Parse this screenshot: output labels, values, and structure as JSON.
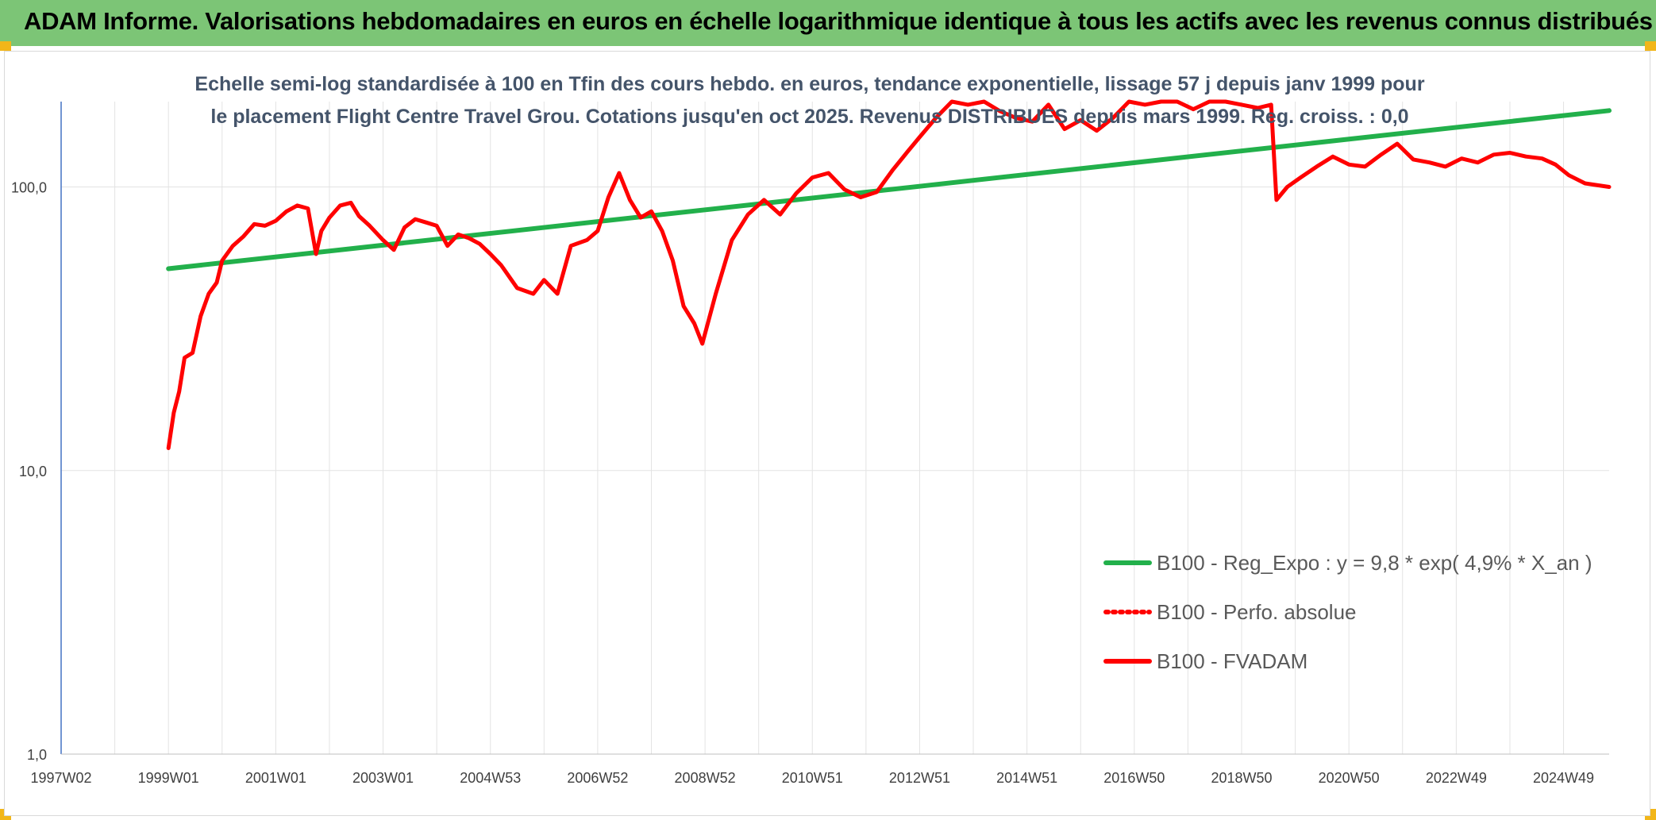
{
  "banner": {
    "title": "ADAM Informe. Valorisations hebdomadaires en euros en échelle logarithmique identique à tous les actifs avec les revenus connus distribués",
    "background": "#7cc576",
    "corner_color": "#f2b619"
  },
  "chart_data": {
    "type": "line",
    "title": "Echelle semi-log standardisée à 100 en Tfin des cours hebdo. en euros, tendance exponentielle, lissage 57 j depuis janv 1999 pour le placement Flight Centre Travel Grou. Cotations jusqu'en oct 2025. Revenus DISTRIBUES depuis mars 1999. Reg. croiss. : 0,0",
    "y_scale": "log",
    "ylim": [
      1,
      200
    ],
    "y_ticks": [
      {
        "value": 1,
        "label": "1,0"
      },
      {
        "value": 10,
        "label": "10,0"
      },
      {
        "value": 100,
        "label": "100,0"
      }
    ],
    "xlim": [
      1997.0,
      2025.85
    ],
    "x_ticks": [
      {
        "value": 1997.0,
        "label": "1997W02"
      },
      {
        "value": 1999.0,
        "label": "1999W01"
      },
      {
        "value": 2001.0,
        "label": "2001W01"
      },
      {
        "value": 2003.0,
        "label": "2003W01"
      },
      {
        "value": 2005.0,
        "label": "2004W53"
      },
      {
        "value": 2007.0,
        "label": "2006W52"
      },
      {
        "value": 2009.0,
        "label": "2008W52"
      },
      {
        "value": 2011.0,
        "label": "2010W51"
      },
      {
        "value": 2013.0,
        "label": "2012W51"
      },
      {
        "value": 2015.0,
        "label": "2014W51"
      },
      {
        "value": 2017.0,
        "label": "2016W50"
      },
      {
        "value": 2019.0,
        "label": "2018W50"
      },
      {
        "value": 2021.0,
        "label": "2020W50"
      },
      {
        "value": 2023.0,
        "label": "2022W49"
      },
      {
        "value": 2025.0,
        "label": "2024W49"
      }
    ],
    "grid": "vertical",
    "legend_position": "bottom-right",
    "series": [
      {
        "name": "B100 - Reg_Expo : y = 9,8 * exp( 4,9% *  X_an )",
        "color": "#22b04b",
        "style": "solid",
        "x": [
          1999.0,
          2025.85
        ],
        "y": [
          51.5,
          186
        ]
      },
      {
        "name": "B100 - Perfo. absolue",
        "color": "#ff0000",
        "style": "dotted",
        "x": [],
        "y": []
      },
      {
        "name": "B100 - FVADAM",
        "color": "#ff0000",
        "style": "solid",
        "x": [
          1999.0,
          1999.1,
          1999.2,
          1999.3,
          1999.45,
          1999.6,
          1999.75,
          1999.9,
          2000.0,
          2000.2,
          2000.4,
          2000.6,
          2000.8,
          2001.0,
          2001.2,
          2001.4,
          2001.6,
          2001.75,
          2001.85,
          2002.0,
          2002.2,
          2002.4,
          2002.55,
          2002.75,
          2003.0,
          2003.2,
          2003.4,
          2003.6,
          2003.8,
          2004.0,
          2004.2,
          2004.4,
          2004.6,
          2004.8,
          2005.0,
          2005.2,
          2005.5,
          2005.8,
          2006.0,
          2006.25,
          2006.5,
          2006.8,
          2007.0,
          2007.2,
          2007.4,
          2007.6,
          2007.8,
          2008.0,
          2008.2,
          2008.4,
          2008.6,
          2008.8,
          2008.95,
          2009.2,
          2009.5,
          2009.8,
          2010.1,
          2010.4,
          2010.7,
          2011.0,
          2011.3,
          2011.6,
          2011.9,
          2012.2,
          2012.5,
          2012.8,
          2013.0,
          2013.3,
          2013.6,
          2013.9,
          2014.2,
          2014.5,
          2014.8,
          2015.1,
          2015.4,
          2015.7,
          2016.0,
          2016.3,
          2016.6,
          2016.9,
          2017.2,
          2017.5,
          2017.8,
          2018.1,
          2018.4,
          2018.7,
          2019.0,
          2019.3,
          2019.55,
          2019.65,
          2019.85,
          2020.1,
          2020.4,
          2020.7,
          2021.0,
          2021.3,
          2021.6,
          2021.9,
          2022.2,
          2022.5,
          2022.8,
          2023.1,
          2023.4,
          2023.7,
          2024.0,
          2024.3,
          2024.6,
          2024.85,
          2025.1,
          2025.4,
          2025.85
        ],
        "y": [
          12,
          16,
          19,
          25,
          26,
          35,
          42,
          46,
          55,
          62,
          67,
          74,
          73,
          76,
          82,
          86,
          84,
          58,
          70,
          78,
          86,
          88,
          79,
          73,
          65,
          60,
          72,
          77,
          75,
          73,
          62,
          68,
          66,
          63,
          58,
          53,
          44,
          42,
          47,
          42,
          62,
          65,
          70,
          92,
          112,
          90,
          78,
          82,
          70,
          55,
          38,
          33,
          28,
          42,
          65,
          80,
          90,
          80,
          95,
          108,
          112,
          98,
          92,
          96,
          115,
          135,
          150,
          175,
          200,
          195,
          220,
          185,
          175,
          170,
          195,
          160,
          172,
          158,
          175,
          210,
          195,
          205,
          210,
          188,
          200,
          200,
          195,
          190,
          195,
          90,
          100,
          108,
          118,
          128,
          120,
          118,
          130,
          142,
          125,
          122,
          118,
          126,
          122,
          130,
          132,
          128,
          126,
          120,
          110,
          103,
          100
        ]
      }
    ]
  }
}
